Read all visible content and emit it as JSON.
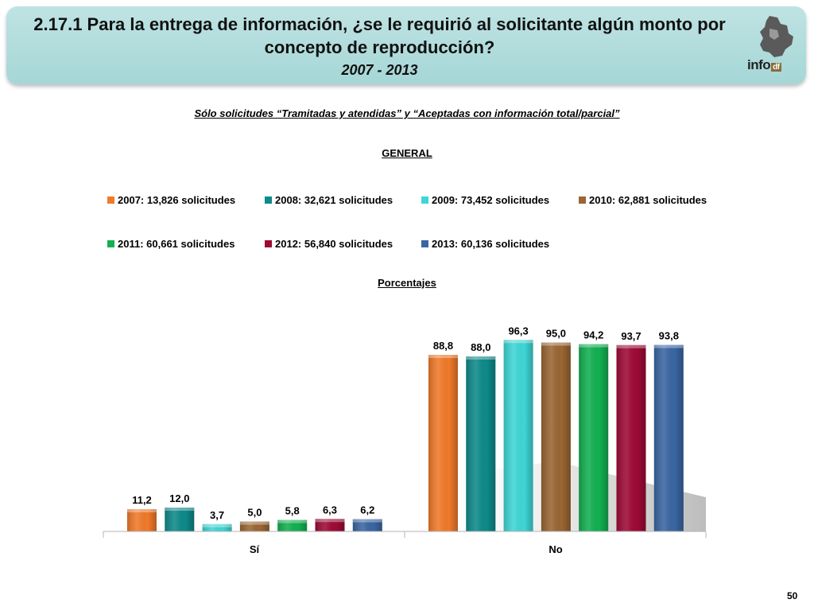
{
  "header": {
    "title_line1": "2.17.1 Para la entrega de información, ¿se le requirió al solicitante algún monto por",
    "title_line2": "concepto de reproducción?",
    "years": "2007 - 2013",
    "logo_text": "info",
    "logo_suffix": "df"
  },
  "subtitle": "Sólo solicitudes “Tramitadas y atendidas” y “Aceptadas con información total/parcial”",
  "page_number": "50",
  "colors": {
    "2007": "#f07a2a",
    "2008": "#0e8a8a",
    "2009": "#3fd6d6",
    "2010": "#9a6633",
    "2011": "#12b050",
    "2012": "#9e0a36",
    "2013": "#3a66a3"
  },
  "chart_data": {
    "type": "bar",
    "title": "GENERAL",
    "ylabel": "Porcentajes",
    "categories": [
      "Sí",
      "No"
    ],
    "ylim": [
      0,
      100
    ],
    "grid": false,
    "legend_position": "top",
    "series": [
      {
        "name": "2007: 13,826 solicitudes",
        "values": [
          11.2,
          88.8
        ],
        "labels": [
          "11,2",
          "88,8"
        ],
        "color": "#f07a2a"
      },
      {
        "name": "2008: 32,621 solicitudes",
        "values": [
          12.0,
          88.0
        ],
        "labels": [
          "12,0",
          "88,0"
        ],
        "color": "#0e8a8a"
      },
      {
        "name": "2009: 73,452 solicitudes",
        "values": [
          3.7,
          96.3
        ],
        "labels": [
          "3,7",
          "96,3"
        ],
        "color": "#3fd6d6"
      },
      {
        "name": "2010: 62,881 solicitudes",
        "values": [
          5.0,
          95.0
        ],
        "labels": [
          "5,0",
          "95,0"
        ],
        "color": "#9a6633"
      },
      {
        "name": "2011: 60,661 solicitudes",
        "values": [
          5.8,
          94.2
        ],
        "labels": [
          "5,8",
          "94,2"
        ],
        "color": "#12b050"
      },
      {
        "name": "2012: 56,840 solicitudes",
        "values": [
          6.3,
          93.7
        ],
        "labels": [
          "6,3",
          "93,7"
        ],
        "color": "#9e0a36"
      },
      {
        "name": "2013: 60,136 solicitudes",
        "values": [
          6.2,
          93.8
        ],
        "labels": [
          "6,2",
          "93,8"
        ],
        "color": "#3a66a3"
      }
    ]
  }
}
